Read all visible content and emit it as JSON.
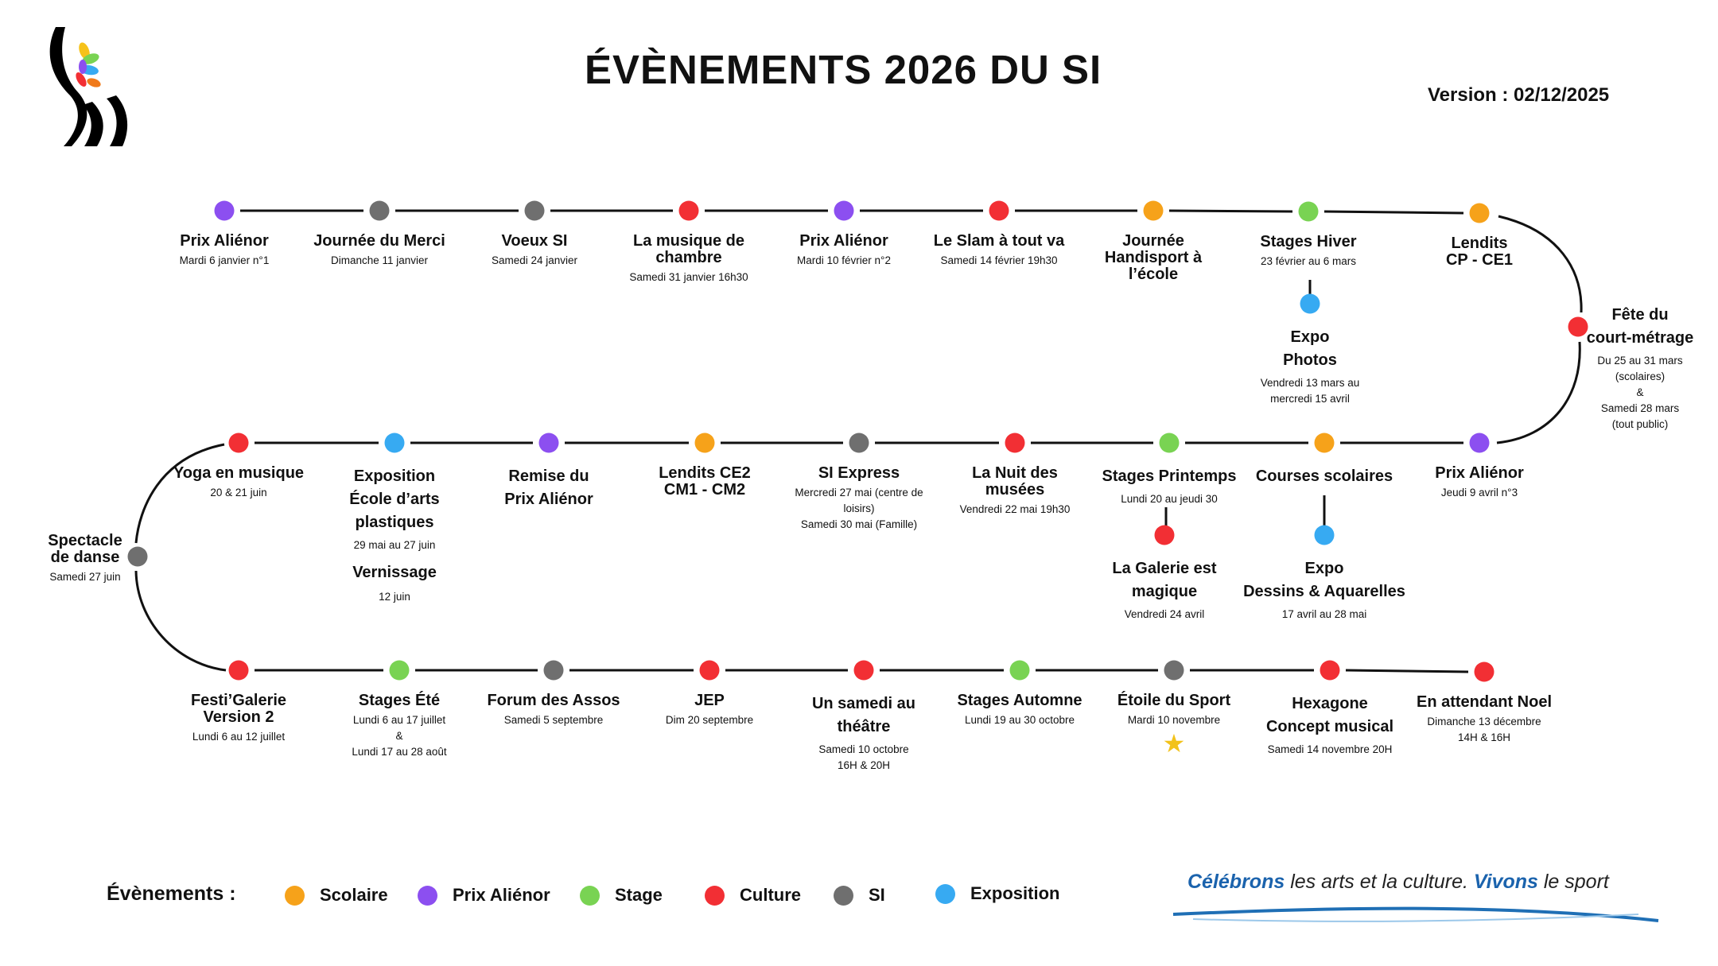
{
  "header": {
    "title": "ÉVÈNEMENTS 2026 DU SI",
    "version": "Version : 02/12/2025"
  },
  "colors": {
    "scolaire": "#f6a21a",
    "prix": "#8c4ff0",
    "stage": "#79d353",
    "culture": "#f22f34",
    "si": "#6f6f6f",
    "exposition": "#37aaf2"
  },
  "events": [
    {
      "title": "Prix Aliénor",
      "date": "Mardi 6 janvier n°1",
      "cat": "prix"
    },
    {
      "title": "Journée du Merci",
      "date": "Dimanche 11 janvier",
      "cat": "si"
    },
    {
      "title": "Voeux SI",
      "date": "Samedi 24 janvier",
      "cat": "si"
    },
    {
      "title": "La musique de\nchambre",
      "date": "Samedi 31 janvier 16h30",
      "cat": "culture"
    },
    {
      "title": "Prix Aliénor",
      "date": "Mardi 10 février n°2",
      "cat": "prix"
    },
    {
      "title": "Le Slam à tout va",
      "date": "Samedi 14 février 19h30",
      "cat": "culture"
    },
    {
      "title": "Journée\nHandisport à\nl’école",
      "date": "",
      "cat": "scolaire"
    },
    {
      "title": "Stages Hiver",
      "date": "23 février au 6  mars",
      "cat": "stage"
    },
    {
      "title": "Lendits\nCP - CE1",
      "date": "",
      "cat": "scolaire"
    },
    {
      "title": "Fête du\ncourt-métrage",
      "date": "Du 25 au 31 mars\n(scolaires)\n&\nSamedi 28 mars\n(tout public)",
      "cat": "culture"
    },
    {
      "title": "Prix Aliénor",
      "date": "Jeudi 9 avril n°3",
      "cat": "prix"
    },
    {
      "title": "Courses scolaires",
      "date": "",
      "cat": "scolaire"
    },
    {
      "title": "Stages Printemps",
      "date": "Lundi 20 au jeudi 30",
      "cat": "stage"
    },
    {
      "title": "La Nuit des\nmusées",
      "date": "Vendredi 22 mai 19h30",
      "cat": "culture"
    },
    {
      "title": "SI Express",
      "date": "Mercredi 27 mai (centre de\nloisirs)\nSamedi 30 mai (Famille)",
      "cat": "si"
    },
    {
      "title": "Lendits CE2\nCM1 - CM2",
      "date": "",
      "cat": "scolaire"
    },
    {
      "title": "Remise du\nPrix Aliénor",
      "date": "",
      "cat": "prix"
    },
    {
      "title": "Exposition\nÉcole d’arts\nplastiques",
      "date": "29 mai au 27 juin",
      "extra_title": "Vernissage",
      "extra_date": "12 juin",
      "cat": "exposition"
    },
    {
      "title": "Yoga en musique",
      "date": "20 & 21 juin",
      "cat": "culture"
    },
    {
      "title": "Spectacle\nde danse",
      "date": "Samedi 27 juin",
      "cat": "si"
    },
    {
      "title": "Festi’Galerie\nVersion 2",
      "date": "Lundi 6 au 12 juillet",
      "cat": "culture"
    },
    {
      "title": "Stages Été",
      "date": "Lundi 6 au 17 juillet\n&\nLundi 17 au 28 août",
      "cat": "stage"
    },
    {
      "title": "Forum des Assos",
      "date": "Samedi 5 septembre",
      "cat": "si"
    },
    {
      "title": "JEP",
      "date": "Dim 20 septembre",
      "cat": "culture"
    },
    {
      "title": "Un samedi au\nthéâtre",
      "date": "Samedi 10 octobre\n16H & 20H",
      "cat": "culture"
    },
    {
      "title": "Stages Automne",
      "date": "Lundi 19 au 30 octobre",
      "cat": "stage"
    },
    {
      "title": "Étoile du Sport",
      "date": "Mardi 10 novembre",
      "cat": "si",
      "star": "★"
    },
    {
      "title": "Hexagone\nConcept musical",
      "date": "Samedi 14 novembre 20H",
      "cat": "culture"
    },
    {
      "title": "En attendant Noel",
      "date": "Dimanche 13 décembre\n14H & 16H",
      "cat": "culture"
    }
  ],
  "branches": [
    {
      "title": "Expo\nPhotos",
      "date": "Vendredi 13 mars au\nmercredi 15 avril",
      "cat": "exposition"
    },
    {
      "title": "Expo\nDessins & Aquarelles",
      "date": "17 avril au 28 mai",
      "cat": "exposition"
    },
    {
      "title": "La Galerie est\nmagique",
      "date": "Vendredi 24 avril",
      "cat": "culture"
    }
  ],
  "legend": {
    "title": "Évènements :",
    "items": [
      {
        "label": "Scolaire",
        "cat": "scolaire"
      },
      {
        "label": "Prix Aliénor",
        "cat": "prix"
      },
      {
        "label": "Stage",
        "cat": "stage"
      },
      {
        "label": "Culture",
        "cat": "culture"
      },
      {
        "label": "SI",
        "cat": "si"
      },
      {
        "label": "Exposition",
        "cat": "exposition"
      }
    ]
  },
  "slogan": {
    "part1": "Célébrons",
    "part2": " les arts et la culture. ",
    "part3": "Vivons",
    "part4": " le sport"
  }
}
